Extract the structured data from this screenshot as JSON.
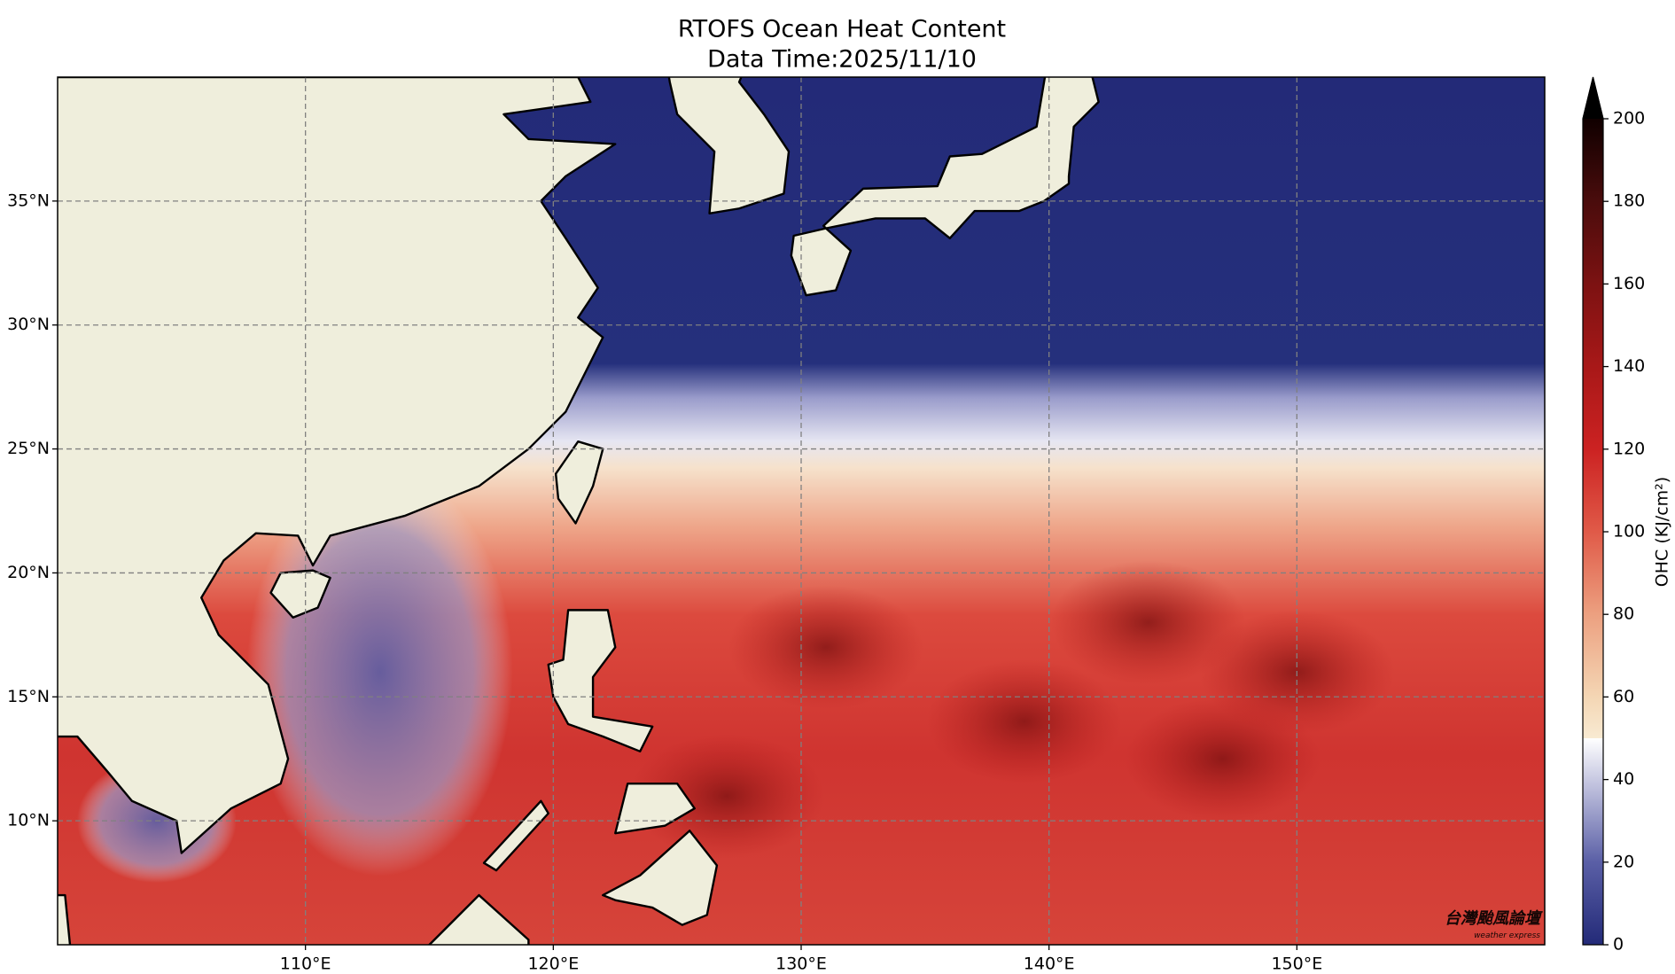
{
  "title": "RTOFS Ocean Heat Content",
  "subtitle": "Data Time:2025/11/10",
  "map": {
    "xlim": [
      100,
      160
    ],
    "ylim": [
      5,
      40
    ],
    "xticks": [
      {
        "value": 110,
        "label": "110°E"
      },
      {
        "value": 120,
        "label": "120°E"
      },
      {
        "value": 130,
        "label": "130°E"
      },
      {
        "value": 140,
        "label": "140°E"
      },
      {
        "value": 150,
        "label": "150°E"
      }
    ],
    "yticks": [
      {
        "value": 10,
        "label": "10°N"
      },
      {
        "value": 15,
        "label": "15°N"
      },
      {
        "value": 20,
        "label": "20°N"
      },
      {
        "value": 25,
        "label": "25°N"
      },
      {
        "value": 30,
        "label": "30°N"
      },
      {
        "value": 35,
        "label": "35°N"
      }
    ],
    "grid": true
  },
  "colorbar": {
    "label": "OHC (KJ/cm²)",
    "lim": [
      0,
      200
    ],
    "ticks": [
      0,
      20,
      40,
      60,
      80,
      100,
      120,
      140,
      160,
      180,
      200
    ]
  },
  "watermark": {
    "name": "台灣颱風論壇",
    "tagline": "weather express"
  }
}
